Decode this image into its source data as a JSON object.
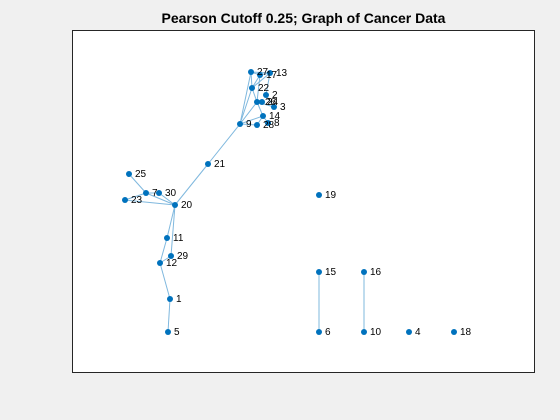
{
  "title": "Pearson Cutoff 0.25; Graph of Cancer Data",
  "colors": {
    "node": "#0072bd",
    "edge": "#7fb8de",
    "background": "#f0f0f0",
    "axes": "#ffffff",
    "axes_border": "#262626"
  },
  "chart_data": {
    "type": "graph",
    "title": "Pearson Cutoff 0.25; Graph of Cancer Data",
    "grid": false,
    "nodes": [
      {
        "id": "1",
        "label": "1"
      },
      {
        "id": "3",
        "label": "3"
      },
      {
        "id": "4",
        "label": "4"
      },
      {
        "id": "5",
        "label": "5"
      },
      {
        "id": "6",
        "label": "6"
      },
      {
        "id": "7",
        "label": "7"
      },
      {
        "id": "8",
        "label": "8"
      },
      {
        "id": "9",
        "label": "9"
      },
      {
        "id": "10",
        "label": "10"
      },
      {
        "id": "11",
        "label": "11"
      },
      {
        "id": "12",
        "label": "12"
      },
      {
        "id": "13",
        "label": "13"
      },
      {
        "id": "14",
        "label": "14"
      },
      {
        "id": "15",
        "label": "15"
      },
      {
        "id": "16",
        "label": "16"
      },
      {
        "id": "17",
        "label": "17"
      },
      {
        "id": "18",
        "label": "18"
      },
      {
        "id": "19",
        "label": "19"
      },
      {
        "id": "20",
        "label": "20"
      },
      {
        "id": "21",
        "label": "21"
      },
      {
        "id": "22",
        "label": "22"
      },
      {
        "id": "23",
        "label": "23"
      },
      {
        "id": "24",
        "label": "24"
      },
      {
        "id": "25",
        "label": "25"
      },
      {
        "id": "26",
        "label": "26"
      },
      {
        "id": "27",
        "label": "27"
      },
      {
        "id": "28",
        "label": "28"
      },
      {
        "id": "29",
        "label": "29"
      },
      {
        "id": "30",
        "label": "30"
      },
      {
        "id": "2",
        "label": "2"
      }
    ],
    "edges": [
      [
        "5",
        "1"
      ],
      [
        "1",
        "12"
      ],
      [
        "12",
        "11"
      ],
      [
        "12",
        "29"
      ],
      [
        "11",
        "20"
      ],
      [
        "29",
        "20"
      ],
      [
        "20",
        "7"
      ],
      [
        "20",
        "30"
      ],
      [
        "20",
        "23"
      ],
      [
        "25",
        "7"
      ],
      [
        "7",
        "30"
      ],
      [
        "23",
        "7"
      ],
      [
        "20",
        "21"
      ],
      [
        "21",
        "9"
      ],
      [
        "9",
        "22"
      ],
      [
        "9",
        "27"
      ],
      [
        "9",
        "26"
      ],
      [
        "9",
        "14"
      ],
      [
        "22",
        "27"
      ],
      [
        "22",
        "17"
      ],
      [
        "22",
        "26"
      ],
      [
        "27",
        "13"
      ],
      [
        "27",
        "17"
      ],
      [
        "17",
        "13"
      ],
      [
        "17",
        "26"
      ],
      [
        "13",
        "2"
      ],
      [
        "26",
        "24"
      ],
      [
        "26",
        "3"
      ],
      [
        "26",
        "14"
      ],
      [
        "14",
        "8"
      ],
      [
        "14",
        "28"
      ],
      [
        "28",
        "9"
      ],
      [
        "22",
        "13"
      ],
      [
        "2",
        "3"
      ],
      [
        "15",
        "6"
      ],
      [
        "16",
        "10"
      ]
    ]
  }
}
